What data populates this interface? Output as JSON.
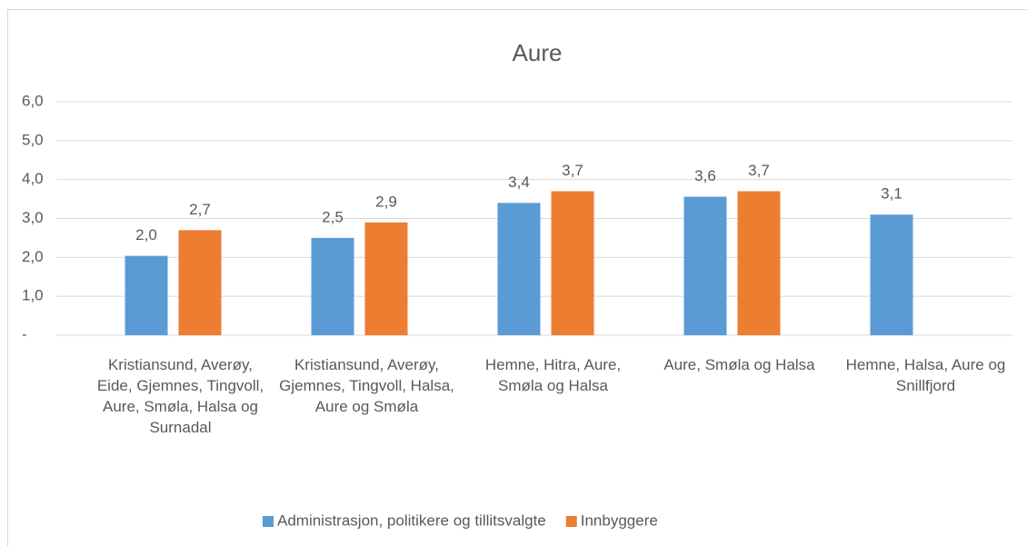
{
  "chart_data": {
    "type": "bar",
    "title": "Aure",
    "categories": [
      "Kristiansund, Averøy, Eide, Gjemnes, Tingvoll, Aure, Smøla, Halsa og Surnadal",
      "Kristiansund, Averøy, Gjemnes, Tingvoll, Halsa, Aure og Smøla",
      "Hemne, Hitra, Aure, Smøla og Halsa",
      "Aure, Smøla og Halsa",
      "Hemne, Halsa, Aure og Snillfjord"
    ],
    "series": [
      {
        "name": "Administrasjon, politikere og tillitsvalgte",
        "color": "#5b9bd5",
        "values": [
          2.04,
          2.5,
          3.4,
          3.56,
          3.1
        ],
        "value_labels": [
          "2,0",
          "2,5",
          "3,4",
          "3,6",
          "3,1"
        ]
      },
      {
        "name": "Innbyggere",
        "color": "#ed7d31",
        "values": [
          2.7,
          2.9,
          3.7,
          3.7,
          null
        ],
        "value_labels": [
          "2,7",
          "2,9",
          "3,7",
          "3,7",
          null
        ]
      }
    ],
    "ylim": [
      0,
      6
    ],
    "yticks": [
      {
        "value": 0,
        "label": "-"
      },
      {
        "value": 1,
        "label": "1,0"
      },
      {
        "value": 2,
        "label": "2,0"
      },
      {
        "value": 3,
        "label": "3,0"
      },
      {
        "value": 4,
        "label": "4,0"
      },
      {
        "value": 5,
        "label": "5,0"
      },
      {
        "value": 6,
        "label": "6,0"
      }
    ],
    "grid": true,
    "legend": "bottom"
  }
}
